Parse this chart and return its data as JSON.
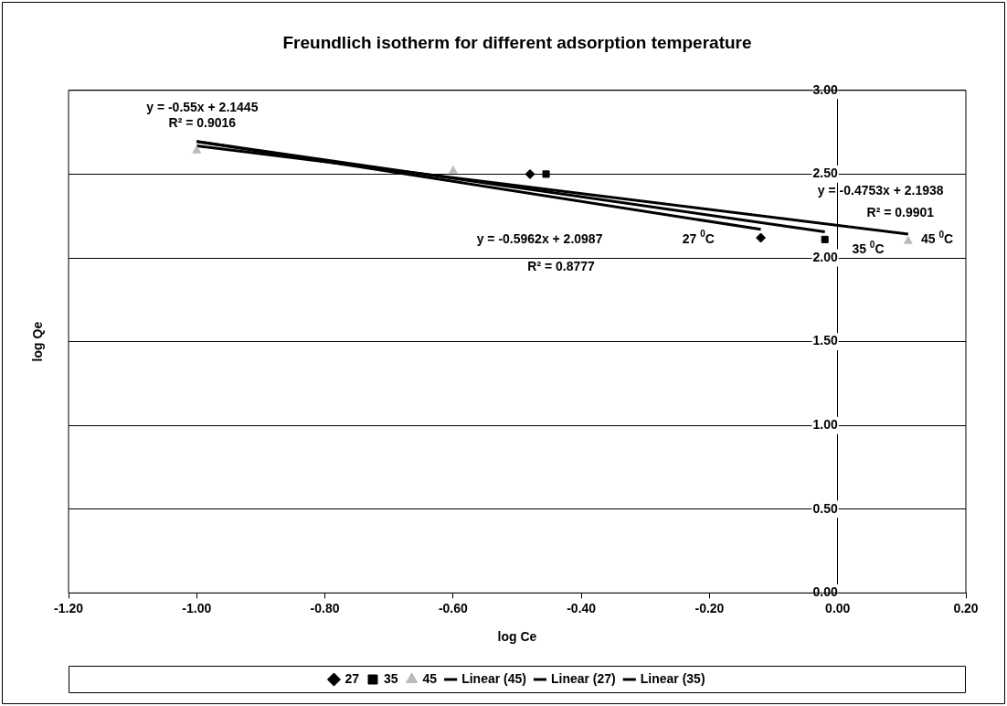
{
  "chart_data": {
    "type": "scatter",
    "title": "Freundlich isotherm for different adsorption temperature",
    "xlabel": "log Ce",
    "ylabel": "log Qe",
    "xlim": [
      -1.2,
      0.2
    ],
    "xticks": [
      {
        "value": -1.2,
        "label": "-1.20"
      },
      {
        "value": -1,
        "label": "-1.00"
      },
      {
        "value": -0.8,
        "label": "-0.80"
      },
      {
        "value": -0.6,
        "label": "-0.60"
      },
      {
        "value": -0.4,
        "label": "-0.40"
      },
      {
        "value": -0.2,
        "label": "-0.20"
      },
      {
        "value": 0,
        "label": "0.00"
      },
      {
        "value": 0.2,
        "label": "0.20"
      }
    ],
    "ylim": [
      0,
      3
    ],
    "yticks": [
      {
        "value": 0,
        "label": "0.00"
      },
      {
        "value": 0.5,
        "label": "0.50"
      },
      {
        "value": 1,
        "label": "1.00"
      },
      {
        "value": 1.5,
        "label": "1.50"
      },
      {
        "value": 2,
        "label": "2.00"
      },
      {
        "value": 2.5,
        "label": "2.50"
      },
      {
        "value": 3,
        "label": "3.00"
      }
    ],
    "grid": "y",
    "legend": "bottom",
    "series": [
      {
        "name": "27",
        "type": "scatter",
        "marker": "diamond",
        "color": "#000000",
        "x": [
          -0.48,
          -0.12
        ],
        "values": [
          2.5,
          2.12
        ]
      },
      {
        "name": "35",
        "type": "scatter",
        "marker": "square",
        "color": "#000000",
        "x": [
          -0.455,
          -0.02
        ],
        "values": [
          2.5,
          2.11
        ]
      },
      {
        "name": "45",
        "type": "scatter",
        "marker": "triangle",
        "color": "#bbbbbb",
        "x": [
          -1.0,
          -0.6,
          0.11
        ],
        "values": [
          2.64,
          2.52,
          2.1
        ]
      },
      {
        "name": "Linear (45)",
        "type": "line",
        "marker": "none",
        "color": "#000000",
        "x": [
          -1.0,
          0.11
        ],
        "values": [
          2.669,
          2.142
        ]
      },
      {
        "name": "Linear (27)",
        "type": "line",
        "marker": "none",
        "color": "#000000",
        "x": [
          -1.0,
          -0.12
        ],
        "values": [
          2.695,
          2.17
        ]
      },
      {
        "name": "Linear (35)",
        "type": "line",
        "marker": "none",
        "color": "#000000",
        "x": [
          -1.0,
          -0.02
        ],
        "values": [
          2.695,
          2.156
        ]
      }
    ],
    "annotations": [
      "y = -0.55x + 2.1445",
      "R² = 0.9016",
      "y = -0.5962x + 2.0987",
      "R² = 0.8777",
      "y = -0.4753x + 2.1938",
      "R² = 0.9901",
      "27 $^{0}$C",
      "35 $^{0}$C",
      "45 $^{0}$C"
    ]
  }
}
